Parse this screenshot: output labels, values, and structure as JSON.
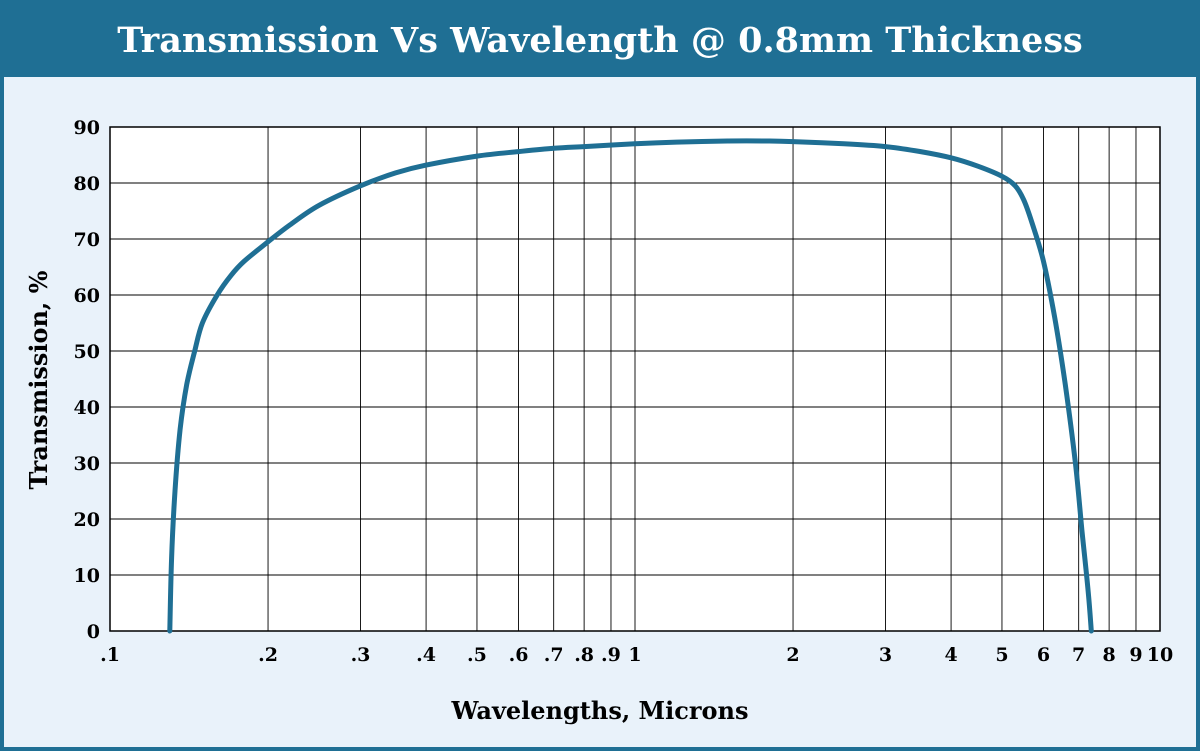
{
  "chart_data": {
    "type": "line",
    "title": "Transmission Vs Wavelength @ 0.8mm Thickness",
    "xlabel": "Wavelengths, Microns",
    "ylabel": "Transmission, %",
    "xscale": "log",
    "xlim": [
      0.1,
      10
    ],
    "ylim": [
      0,
      90
    ],
    "grid": true,
    "x_ticks": [
      0.1,
      0.2,
      0.3,
      0.4,
      0.5,
      0.6,
      0.7,
      0.8,
      0.9,
      1,
      2,
      3,
      4,
      5,
      6,
      7,
      8,
      9,
      10
    ],
    "x_tick_labels": [
      ".1",
      ".2",
      ".3",
      ".4",
      ".5",
      ".6",
      ".7",
      ".8",
      ".9",
      "1",
      "2",
      "3",
      "4",
      "5",
      "6",
      "7",
      "8",
      "9",
      "10"
    ],
    "y_ticks": [
      0,
      10,
      20,
      30,
      40,
      50,
      60,
      70,
      80,
      90
    ],
    "y_tick_labels": [
      "0",
      "10",
      "20",
      "30",
      "40",
      "50",
      "60",
      "70",
      "80",
      "90"
    ],
    "line_color": "#1f6f94",
    "series": [
      {
        "x": [
          0.13,
          0.131,
          0.133,
          0.136,
          0.14,
          0.145,
          0.15,
          0.16,
          0.17,
          0.18,
          0.2,
          0.22,
          0.25,
          0.3,
          0.35,
          0.4,
          0.5,
          0.6,
          0.7,
          0.8,
          1.0,
          1.2,
          1.5,
          1.8,
          2.0,
          2.5,
          3.0,
          3.5,
          4.0,
          4.5,
          5.0,
          5.3,
          5.5,
          5.7,
          6.0,
          6.3,
          6.6,
          6.9,
          7.1,
          7.3,
          7.4
        ],
        "y": [
          0,
          13,
          25,
          36,
          44,
          50,
          55,
          60,
          63.5,
          66,
          69.5,
          72.5,
          76,
          79.5,
          81.8,
          83.2,
          84.8,
          85.6,
          86.2,
          86.5,
          87,
          87.3,
          87.5,
          87.5,
          87.4,
          87,
          86.5,
          85.6,
          84.5,
          83,
          81.2,
          79.5,
          77,
          73,
          66,
          56,
          44,
          30,
          18,
          7,
          0
        ]
      }
    ]
  }
}
